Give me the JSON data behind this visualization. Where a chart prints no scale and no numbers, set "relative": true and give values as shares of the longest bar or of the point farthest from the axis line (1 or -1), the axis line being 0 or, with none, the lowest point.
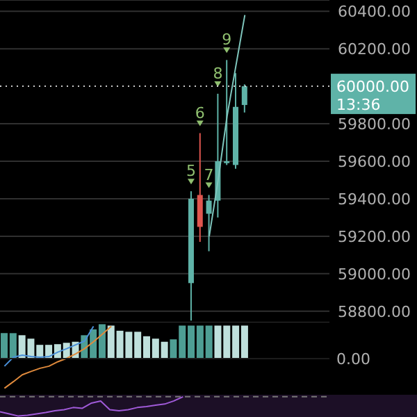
{
  "chart_data": [
    {
      "type": "candlestick",
      "categories": [
        null,
        null,
        null,
        null,
        null,
        null,
        null,
        null,
        null,
        null,
        null,
        null,
        null,
        null,
        null,
        null,
        null,
        null,
        null,
        null,
        null,
        null,
        null,
        null,
        null,
        null,
        null,
        null,
        null,
        null,
        null,
        null,
        null,
        null,
        null,
        null,
        null
      ],
      "ohlc": [
        null,
        null,
        null,
        null,
        null,
        null,
        null,
        null,
        null,
        null,
        null,
        null,
        null,
        null,
        null,
        null,
        null,
        null,
        null,
        null,
        null,
        [
          58950,
          59440,
          58750,
          59400
        ],
        [
          59420,
          59750,
          59170,
          59250
        ],
        [
          59320,
          59420,
          59120,
          59390
        ],
        [
          59390,
          59960,
          59300,
          59600
        ],
        [
          59590,
          60140,
          59580,
          59600
        ],
        [
          59580,
          60070,
          59560,
          59890
        ],
        [
          59900,
          60010,
          59860,
          60000
        ],
        null,
        null,
        null,
        null,
        null,
        null,
        null,
        null,
        null
      ],
      "series": [
        {
          "type": "line",
          "color": "#7fc6bd",
          "values": [
            null,
            null,
            null,
            null,
            null,
            null,
            null,
            null,
            null,
            null,
            null,
            null,
            null,
            null,
            null,
            null,
            null,
            null,
            null,
            null,
            null,
            null,
            null,
            59200,
            59500,
            59840,
            60110,
            60380,
            null,
            null,
            null,
            null,
            null,
            null,
            null,
            null,
            null
          ]
        }
      ],
      "ylim": [
        58740,
        60460
      ],
      "yticks": [
        {
          "value": 58800,
          "label": "58800.00"
        },
        {
          "value": 59000,
          "label": "59000.00"
        },
        {
          "value": 59200,
          "label": "59200.00"
        },
        {
          "value": 59400,
          "label": "59400.00"
        },
        {
          "value": 59600,
          "label": "59600.00"
        },
        {
          "value": 59800,
          "label": "59800.00"
        },
        {
          "value": 60200,
          "label": "60200.00"
        },
        {
          "value": 60400,
          "label": "60400.00"
        }
      ],
      "grid": "y",
      "ref_lines": [
        {
          "axis": "y",
          "value": 60000,
          "label": "60000.00",
          "color": "#cccccc",
          "line_style": "dotted"
        }
      ],
      "annotations": [
        {
          "text": "5",
          "y": 59440
        },
        {
          "text": "6",
          "y": 59750
        },
        {
          "text": "7",
          "y": 59420
        },
        {
          "text": "8",
          "y": 59960
        },
        {
          "text": "9",
          "y": 60140
        },
        "13:36"
      ]
    },
    {
      "type": "bar",
      "relative": true,
      "categories": [
        null,
        null,
        null,
        null,
        null,
        null,
        null,
        null,
        null,
        null,
        null,
        null,
        null,
        null,
        null,
        null,
        null,
        null,
        null,
        null,
        null,
        null,
        null,
        null,
        null,
        null,
        null,
        null,
        null,
        null,
        null,
        null,
        null,
        null,
        null,
        null,
        null
      ],
      "series": [
        {
          "type": "bar",
          "colors": [
            "#4e9e94",
            "#4e9e94",
            "#bfe0dc",
            "#bfe0dc",
            "#bfe0dc",
            "#bfe0dc",
            "#bfe0dc",
            "#bfe0dc",
            "#bfe0dc",
            "#4e9e94",
            "#4e9e94",
            "#4e9e94",
            "#bfe0dc",
            "#bfe0dc",
            "#bfe0dc",
            "#bfe0dc",
            "#bfe0dc",
            "#bfe0dc",
            "#bfe0dc",
            "#4e9e94",
            "#4e9e94",
            "#4e9e94",
            "#4e9e94",
            "#4e9e94",
            "#bfe0dc",
            "#bfe0dc",
            "#bfe0dc",
            "#bfe0dc",
            null,
            null,
            null,
            null,
            null,
            null,
            null,
            null,
            null
          ],
          "values": [
            0.74,
            0.74,
            0.68,
            0.58,
            0.4,
            0.4,
            0.42,
            0.46,
            0.49,
            0.68,
            0.85,
            1,
            0.96,
            0.81,
            0.78,
            0.78,
            0.65,
            0.58,
            0.49,
            0.56,
            0.96,
            0.96,
            0.96,
            0.96,
            0.96,
            0.96,
            0.96,
            0.96,
            null,
            null,
            null,
            null,
            null,
            null,
            null,
            null,
            null
          ]
        },
        {
          "type": "line",
          "color": "#4a90d9",
          "values": [
            -0.22,
            0.04,
            0.1,
            0.06,
            0.04,
            0.06,
            0.19,
            0.29,
            0.4,
            0.51,
            0.94,
            null,
            null,
            null,
            null,
            null,
            null,
            null,
            null,
            null,
            null,
            null,
            null,
            null,
            null,
            null,
            null,
            null,
            null,
            null,
            null,
            null,
            null,
            null,
            null,
            null,
            null
          ]
        },
        {
          "type": "line",
          "color": "#e08a3c",
          "values": [
            -0.86,
            -0.67,
            -0.47,
            -0.37,
            -0.28,
            -0.22,
            -0.09,
            0.01,
            0.14,
            0.29,
            0.49,
            0.71,
            0.94,
            null,
            null,
            null,
            null,
            null,
            null,
            null,
            null,
            null,
            null,
            null,
            null,
            null,
            null,
            null,
            null,
            null,
            null,
            null,
            null,
            null,
            null,
            null,
            null
          ]
        }
      ],
      "ref_lines": [
        {
          "axis": "y",
          "value": 0,
          "label": "0.00",
          "color": "#1c1c1c"
        }
      ]
    },
    {
      "type": "line",
      "relative": true,
      "categories": [
        null,
        null,
        null,
        null,
        null,
        null,
        null,
        null,
        null,
        null,
        null,
        null,
        null,
        null,
        null,
        null,
        null,
        null,
        null,
        null,
        null,
        null,
        null,
        null,
        null,
        null,
        null,
        null,
        null,
        null,
        null,
        null,
        null,
        null,
        null,
        null,
        null
      ],
      "series": [
        {
          "color": "#a05ad8",
          "values": [
            0.22,
            0.11,
            0,
            0.04,
            0.11,
            0.18,
            0.27,
            0.33,
            0.44,
            0.4,
            0.67,
            0.78,
            0.33,
            0.27,
            0.33,
            0.44,
            0.49,
            0.56,
            0.62,
            0.78,
            1,
            null,
            null,
            null,
            null,
            null,
            null,
            null,
            null,
            null,
            null,
            null,
            null,
            null,
            null,
            null,
            null
          ]
        }
      ],
      "ref_lines": [
        {
          "axis": "y",
          "value": 1,
          "color": "#777777",
          "line_style": "dashed"
        }
      ]
    }
  ]
}
